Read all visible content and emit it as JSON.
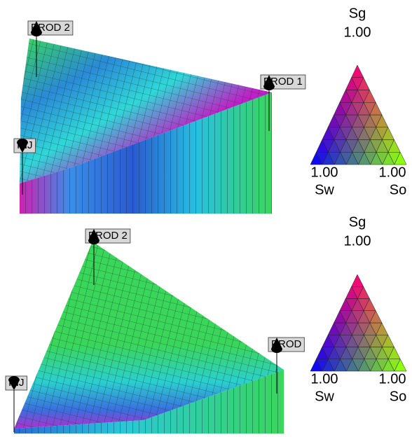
{
  "panels": [
    {
      "wells": [
        "PROD 2",
        "PROD 1",
        "INJ"
      ],
      "legend": {
        "top_label": "Sg",
        "top_value": "1.00",
        "left_value": "1.00",
        "right_value": "1.00",
        "left_label": "Sw",
        "right_label": "So"
      }
    },
    {
      "wells": [
        "PROD 2",
        "PROD",
        "INJ"
      ],
      "legend": {
        "top_label": "Sg",
        "top_value": "1.00",
        "left_value": "1.00",
        "right_value": "1.00",
        "left_label": "Sw",
        "right_label": "So"
      }
    }
  ]
}
